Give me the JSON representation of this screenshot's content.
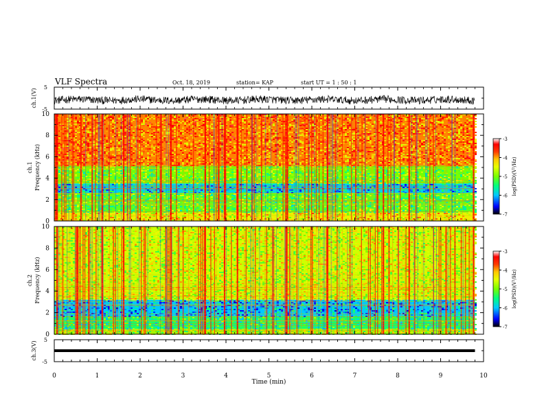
{
  "header": {
    "title": "VLF Spectra",
    "date": "Oct. 18, 2019",
    "station": "station= KAP",
    "start_ut": "start UT =  1 : 50 : 1"
  },
  "chart_data": [
    {
      "type": "line",
      "panel": "ch1-waveform",
      "ylabel": "ch.1(V)",
      "ylim": [
        -5,
        5
      ],
      "yticks": [
        "5",
        "-5"
      ],
      "xlim": [
        0,
        10
      ],
      "data_extent_min": 9.8,
      "baseline_v": -0.8,
      "noise_amplitude_v": 2.2
    },
    {
      "type": "heatmap",
      "panel": "ch1-spectrogram",
      "ylabel": "ch.1 Frequency (kHz)",
      "ylim": [
        0,
        10
      ],
      "yticks": [
        "0",
        "2",
        "4",
        "6",
        "8",
        "10"
      ],
      "xlim": [
        0,
        10
      ],
      "data_extent_min": 9.8,
      "colorbar": {
        "label": "log(PSD)(V²/Hz)",
        "range": [
          -7,
          -3
        ],
        "ticks": [
          "-3",
          "-4",
          "-5",
          "-6",
          "-7"
        ]
      },
      "bands_khz": [
        {
          "from": 5.2,
          "to": 10,
          "log_psd": -3.9
        },
        {
          "from": 3.5,
          "to": 5.2,
          "log_psd": -5.0
        },
        {
          "from": 2.6,
          "to": 3.5,
          "log_psd": -5.9
        },
        {
          "from": 0.8,
          "to": 2.6,
          "log_psd": -5.1
        },
        {
          "from": 0,
          "to": 0.8,
          "log_psd": -4.4
        }
      ],
      "strong_events_min": [
        0.05,
        1.1,
        1.6,
        2.7,
        3.5,
        3.95,
        4.25,
        5.4,
        6.35,
        7.65,
        8.25,
        9.75
      ]
    },
    {
      "type": "heatmap",
      "panel": "ch2-spectrogram",
      "ylabel": "ch.2 Frequency (kHz)",
      "ylim": [
        0,
        10
      ],
      "yticks": [
        "0",
        "2",
        "4",
        "6",
        "8",
        "10"
      ],
      "xlim": [
        0,
        10
      ],
      "data_extent_min": 9.8,
      "colorbar": {
        "label": "log(PSD)(V²/Hz)",
        "range": [
          -7,
          -3
        ],
        "ticks": [
          "-3",
          "-4",
          "-5",
          "-6",
          "-7"
        ]
      },
      "bands_khz": [
        {
          "from": 3.2,
          "to": 10,
          "log_psd": -4.6
        },
        {
          "from": 1.7,
          "to": 3.2,
          "log_psd": -6.0
        },
        {
          "from": 0.5,
          "to": 1.7,
          "log_psd": -5.4
        },
        {
          "from": 0,
          "to": 0.5,
          "log_psd": -4.8
        }
      ],
      "strong_events_min": [
        0.05,
        1.1,
        1.6,
        2.7,
        3.5,
        3.95,
        4.25,
        5.4,
        6.35,
        7.65,
        8.25,
        9.75
      ]
    },
    {
      "type": "line",
      "panel": "ch3-waveform",
      "ylabel": "ch.3(V)",
      "ylim": [
        -5,
        5
      ],
      "yticks": [
        "5",
        "-5"
      ],
      "xlim": [
        0,
        10
      ],
      "data_extent_min": 9.8,
      "constant_v": 0
    }
  ],
  "xaxis": {
    "label": "Time (min)",
    "ticks": [
      "0",
      "1",
      "2",
      "3",
      "4",
      "5",
      "6",
      "7",
      "8",
      "9",
      "10"
    ]
  },
  "colors": {
    "colormap": [
      "#000000",
      "#0000ff",
      "#00c8ff",
      "#00ff80",
      "#aaff00",
      "#ffff00",
      "#ff8000",
      "#ff0000",
      "#ffffff"
    ]
  }
}
